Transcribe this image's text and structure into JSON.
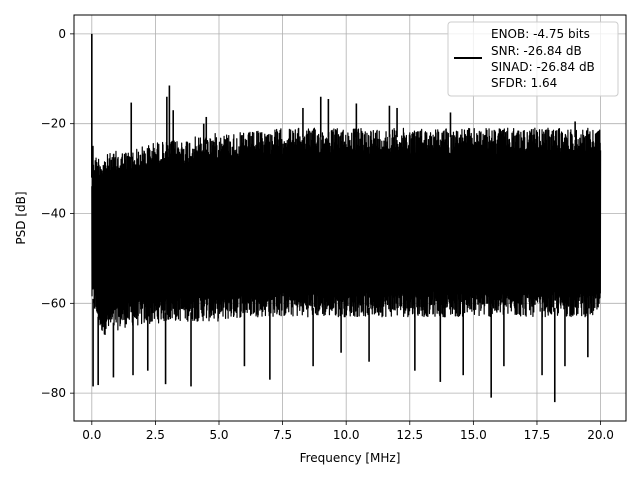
{
  "chart_data": {
    "type": "line",
    "title": "",
    "xlabel": "Frequency [MHz]",
    "ylabel": "PSD [dB]",
    "xlim": [
      -0.7,
      21.0
    ],
    "ylim": [
      -86.2,
      4.2
    ],
    "xticks": [
      0.0,
      2.5,
      5.0,
      7.5,
      10.0,
      12.5,
      15.0,
      17.5,
      20.0
    ],
    "xtick_labels": [
      "0.0",
      "2.5",
      "5.0",
      "7.5",
      "10.0",
      "12.5",
      "15.0",
      "17.5",
      "20.0"
    ],
    "yticks": [
      0,
      -20,
      -40,
      -60,
      -80
    ],
    "ytick_labels": [
      "0",
      "−20",
      "−40",
      "−60",
      "−80"
    ],
    "grid": true,
    "legend_position": "top-right",
    "legend_lines": [
      "ENOB: -4.75 bits",
      "SNR: -26.84 dB",
      "SINAD: -26.84 dB",
      "SFDR: 1.64"
    ],
    "series": [
      {
        "color": "#000000",
        "x_range": [
          0.0,
          20.0
        ],
        "noise_floor_db": -45,
        "envelope_top": {
          "x": [
            0.0,
            0.05,
            0.1,
            0.3,
            0.5,
            1.0,
            1.5,
            2.0,
            2.5,
            3.0,
            4.0,
            5.0,
            6.0,
            7.5,
            9.0,
            10.0,
            12.5,
            15.0,
            17.5,
            20.0
          ],
          "y": [
            -30,
            -24,
            -27,
            -27,
            -27,
            -26,
            -26,
            -25,
            -24,
            -24,
            -23,
            -22,
            -22,
            -21,
            -21,
            -21,
            -21,
            -21,
            -21,
            -21
          ]
        },
        "envelope_bottom": {
          "x": [
            0.0,
            0.3,
            0.5,
            1.0,
            1.5,
            2.0,
            3.0,
            4.0,
            5.0,
            6.0,
            7.5,
            10.0,
            12.5,
            15.0,
            17.5,
            20.0
          ],
          "y": [
            -60,
            -66,
            -67,
            -66,
            -65,
            -65,
            -64,
            -64,
            -64,
            -63,
            -63,
            -63,
            -63,
            -63,
            -63,
            -63
          ]
        },
        "spikes": [
          {
            "x": 0.0,
            "y": 0
          },
          {
            "x": 0.05,
            "y": -78.5
          },
          {
            "x": 0.25,
            "y": -78.2
          },
          {
            "x": 0.85,
            "y": -76.5
          },
          {
            "x": 1.55,
            "y": -15.3
          },
          {
            "x": 1.62,
            "y": -76
          },
          {
            "x": 2.2,
            "y": -75
          },
          {
            "x": 2.95,
            "y": -14
          },
          {
            "x": 3.05,
            "y": -11.5
          },
          {
            "x": 3.2,
            "y": -17
          },
          {
            "x": 2.9,
            "y": -78
          },
          {
            "x": 3.9,
            "y": -78.5
          },
          {
            "x": 4.4,
            "y": -20
          },
          {
            "x": 4.5,
            "y": -18.5
          },
          {
            "x": 6.0,
            "y": -74
          },
          {
            "x": 7.0,
            "y": -77
          },
          {
            "x": 8.3,
            "y": -16.5
          },
          {
            "x": 8.7,
            "y": -74
          },
          {
            "x": 9.0,
            "y": -14
          },
          {
            "x": 9.3,
            "y": -14.5
          },
          {
            "x": 9.8,
            "y": -71
          },
          {
            "x": 10.4,
            "y": -15.5
          },
          {
            "x": 10.9,
            "y": -73
          },
          {
            "x": 11.7,
            "y": -16
          },
          {
            "x": 12.0,
            "y": -16.5
          },
          {
            "x": 12.7,
            "y": -75
          },
          {
            "x": 13.7,
            "y": -77.5
          },
          {
            "x": 14.1,
            "y": -17.5
          },
          {
            "x": 14.6,
            "y": -76
          },
          {
            "x": 15.7,
            "y": -81
          },
          {
            "x": 16.2,
            "y": -74
          },
          {
            "x": 17.7,
            "y": -76
          },
          {
            "x": 18.2,
            "y": -82
          },
          {
            "x": 18.6,
            "y": -74
          },
          {
            "x": 19.5,
            "y": -72
          },
          {
            "x": 19.0,
            "y": -19.5
          }
        ]
      }
    ]
  }
}
